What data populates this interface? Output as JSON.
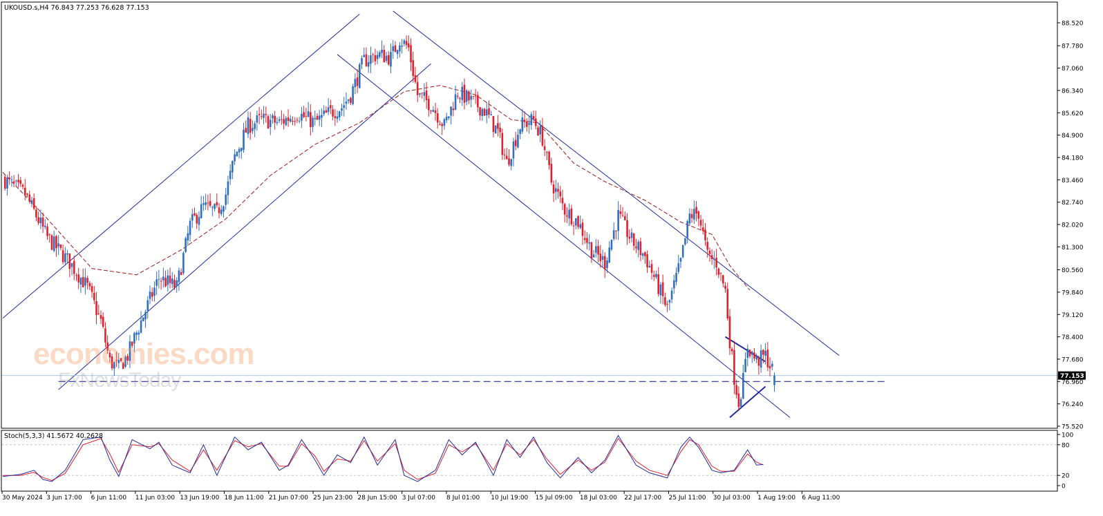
{
  "header": {
    "symbol_line": "UKOUSD.s,H4  76.843 77.253 76.628 77.153"
  },
  "price_axis": {
    "ticks": [
      "88.520",
      "87.780",
      "87.060",
      "86.340",
      "85.620",
      "84.900",
      "84.180",
      "83.460",
      "82.740",
      "82.020",
      "81.300",
      "80.560",
      "79.840",
      "79.120",
      "78.400",
      "77.680",
      "76.960",
      "76.240",
      "75.520"
    ],
    "current_label": "77.153",
    "current_value": 77.153
  },
  "time_axis": {
    "ticks": [
      "30 May 2024",
      "3 Jun 17:00",
      "6 Jun 11:00",
      "11 Jun 03:00",
      "13 Jun 19:00",
      "18 Jun 11:00",
      "21 Jun 07:00",
      "25 Jun 23:00",
      "28 Jun 15:00",
      "3 Jul 07:00",
      "8 Jul 01:00",
      "10 Jul 19:00",
      "15 Jul 09:00",
      "18 Jul 03:00",
      "22 Jul 17:00",
      "25 Jul 11:00",
      "30 Jul 03:00",
      "1 Aug 19:00",
      "6 Aug 11:00"
    ]
  },
  "stochastic": {
    "label": "Stoch(5,3,3) 41.5672 40.2628",
    "ticks": [
      "100",
      "80",
      "20",
      "0"
    ]
  },
  "watermark": {
    "main": "economies.com",
    "sub": "FxNewsToday"
  },
  "colors": {
    "bull_candle": "#2e6fc0",
    "bear_candle": "#e0202c",
    "channel": "#1f2aa0",
    "moving_average": "#a01818",
    "stoch_main": "#1f2aa0",
    "stoch_signal": "#e0202c",
    "support_line": "#1f2aa0"
  },
  "chart_data": {
    "type": "candlestick",
    "symbol": "UKOUSD.s",
    "timeframe": "H4",
    "ohlc_last": {
      "open": 76.843,
      "high": 77.253,
      "low": 76.628,
      "close": 77.153
    },
    "ylim": [
      75.52,
      88.52
    ],
    "close_path": [
      [
        0,
        83.5
      ],
      [
        10,
        83.0
      ],
      [
        20,
        81.6
      ],
      [
        30,
        80.8
      ],
      [
        38,
        80.0
      ],
      [
        44,
        78.9
      ],
      [
        48,
        77.6
      ],
      [
        52,
        77.4
      ],
      [
        56,
        77.8
      ],
      [
        62,
        78.9
      ],
      [
        70,
        80.3
      ],
      [
        78,
        80.0
      ],
      [
        84,
        82.0
      ],
      [
        90,
        82.6
      ],
      [
        96,
        82.4
      ],
      [
        100,
        83.0
      ],
      [
        104,
        84.2
      ],
      [
        110,
        85.2
      ],
      [
        116,
        85.4
      ],
      [
        124,
        85.3
      ],
      [
        132,
        85.6
      ],
      [
        140,
        85.3
      ],
      [
        146,
        85.6
      ],
      [
        152,
        85.8
      ],
      [
        156,
        86.2
      ],
      [
        162,
        87.3
      ],
      [
        168,
        87.5
      ],
      [
        174,
        87.4
      ],
      [
        178,
        88.0
      ],
      [
        182,
        87.7
      ],
      [
        186,
        86.2
      ],
      [
        192,
        85.9
      ],
      [
        198,
        85.2
      ],
      [
        204,
        86.3
      ],
      [
        210,
        86.0
      ],
      [
        216,
        85.7
      ],
      [
        222,
        85.0
      ],
      [
        226,
        84.0
      ],
      [
        232,
        85.2
      ],
      [
        238,
        85.4
      ],
      [
        242,
        84.8
      ],
      [
        246,
        83.4
      ],
      [
        252,
        82.5
      ],
      [
        258,
        82.1
      ],
      [
        264,
        81.2
      ],
      [
        270,
        80.8
      ],
      [
        276,
        82.3
      ],
      [
        282,
        81.5
      ],
      [
        288,
        81.0
      ],
      [
        294,
        80.0
      ],
      [
        298,
        79.3
      ],
      [
        304,
        80.8
      ],
      [
        308,
        82.3
      ],
      [
        312,
        82.4
      ],
      [
        316,
        81.0
      ],
      [
        320,
        80.8
      ],
      [
        324,
        79.9
      ],
      [
        326,
        78.3
      ],
      [
        328,
        77.1
      ],
      [
        330,
        76.3
      ],
      [
        332,
        77.0
      ],
      [
        334,
        78.1
      ],
      [
        338,
        77.6
      ],
      [
        342,
        77.8
      ],
      [
        346,
        77.153
      ]
    ],
    "moving_average": [
      [
        0,
        83.7
      ],
      [
        20,
        82.2
      ],
      [
        40,
        80.6
      ],
      [
        60,
        80.4
      ],
      [
        80,
        81.2
      ],
      [
        100,
        82.2
      ],
      [
        120,
        83.6
      ],
      [
        140,
        84.6
      ],
      [
        160,
        85.3
      ],
      [
        180,
        86.3
      ],
      [
        196,
        86.5
      ],
      [
        212,
        86.2
      ],
      [
        228,
        85.4
      ],
      [
        240,
        85.3
      ],
      [
        256,
        84.0
      ],
      [
        270,
        83.4
      ],
      [
        288,
        82.8
      ],
      [
        304,
        82.1
      ],
      [
        318,
        81.7
      ],
      [
        326,
        80.7
      ],
      [
        335,
        79.9
      ]
    ],
    "ascending_channel": {
      "lower": [
        [
          0,
          79.0
        ],
        [
          160,
          88.8
        ]
      ],
      "upper": [
        [
          25,
          76.7
        ],
        [
          192,
          87.2
        ]
      ]
    },
    "descending_channel": {
      "upper": [
        [
          175,
          88.9
        ],
        [
          375,
          77.8
        ]
      ],
      "lower": [
        [
          150,
          87.5
        ],
        [
          353,
          75.8
        ]
      ]
    },
    "support_level": 76.96,
    "triangle": {
      "upper": [
        [
          324,
          78.4
        ],
        [
          342,
          77.6
        ]
      ],
      "lower": [
        [
          326,
          75.8
        ],
        [
          342,
          76.8
        ]
      ]
    },
    "stochastic": {
      "ylim": [
        0,
        100
      ],
      "levels": [
        80,
        20
      ],
      "main_last": 41.5672,
      "signal_last": 40.2628,
      "main": [
        [
          0,
          18
        ],
        [
          8,
          22
        ],
        [
          14,
          30
        ],
        [
          18,
          12
        ],
        [
          22,
          8
        ],
        [
          28,
          30
        ],
        [
          36,
          90
        ],
        [
          44,
          95
        ],
        [
          48,
          50
        ],
        [
          52,
          18
        ],
        [
          58,
          90
        ],
        [
          66,
          72
        ],
        [
          70,
          85
        ],
        [
          76,
          40
        ],
        [
          84,
          25
        ],
        [
          90,
          80
        ],
        [
          96,
          20
        ],
        [
          104,
          95
        ],
        [
          110,
          70
        ],
        [
          116,
          85
        ],
        [
          124,
          30
        ],
        [
          128,
          40
        ],
        [
          134,
          90
        ],
        [
          140,
          50
        ],
        [
          144,
          20
        ],
        [
          150,
          60
        ],
        [
          156,
          45
        ],
        [
          162,
          95
        ],
        [
          168,
          40
        ],
        [
          176,
          90
        ],
        [
          180,
          20
        ],
        [
          186,
          8
        ],
        [
          194,
          30
        ],
        [
          200,
          90
        ],
        [
          206,
          60
        ],
        [
          212,
          85
        ],
        [
          220,
          20
        ],
        [
          226,
          90
        ],
        [
          232,
          55
        ],
        [
          238,
          95
        ],
        [
          244,
          45
        ],
        [
          250,
          15
        ],
        [
          258,
          55
        ],
        [
          264,
          25
        ],
        [
          270,
          50
        ],
        [
          276,
          98
        ],
        [
          284,
          40
        ],
        [
          290,
          25
        ],
        [
          298,
          15
        ],
        [
          304,
          75
        ],
        [
          308,
          95
        ],
        [
          312,
          75
        ],
        [
          318,
          30
        ],
        [
          322,
          25
        ],
        [
          328,
          30
        ],
        [
          334,
          70
        ],
        [
          338,
          40
        ],
        [
          341,
          41.6
        ]
      ],
      "signal": [
        [
          0,
          20
        ],
        [
          8,
          20
        ],
        [
          14,
          26
        ],
        [
          18,
          16
        ],
        [
          22,
          10
        ],
        [
          28,
          24
        ],
        [
          36,
          80
        ],
        [
          44,
          92
        ],
        [
          48,
          62
        ],
        [
          52,
          26
        ],
        [
          58,
          80
        ],
        [
          66,
          76
        ],
        [
          70,
          82
        ],
        [
          76,
          50
        ],
        [
          84,
          28
        ],
        [
          90,
          70
        ],
        [
          96,
          30
        ],
        [
          104,
          88
        ],
        [
          110,
          76
        ],
        [
          116,
          82
        ],
        [
          124,
          38
        ],
        [
          128,
          38
        ],
        [
          134,
          82
        ],
        [
          140,
          58
        ],
        [
          144,
          28
        ],
        [
          150,
          52
        ],
        [
          156,
          48
        ],
        [
          162,
          88
        ],
        [
          168,
          48
        ],
        [
          176,
          82
        ],
        [
          180,
          30
        ],
        [
          186,
          12
        ],
        [
          194,
          24
        ],
        [
          200,
          80
        ],
        [
          206,
          66
        ],
        [
          212,
          82
        ],
        [
          220,
          30
        ],
        [
          226,
          82
        ],
        [
          232,
          60
        ],
        [
          238,
          90
        ],
        [
          244,
          52
        ],
        [
          250,
          22
        ],
        [
          258,
          50
        ],
        [
          264,
          30
        ],
        [
          270,
          46
        ],
        [
          276,
          92
        ],
        [
          284,
          48
        ],
        [
          290,
          30
        ],
        [
          298,
          20
        ],
        [
          304,
          66
        ],
        [
          308,
          90
        ],
        [
          312,
          80
        ],
        [
          318,
          38
        ],
        [
          322,
          28
        ],
        [
          328,
          28
        ],
        [
          334,
          62
        ],
        [
          338,
          46
        ],
        [
          341,
          40.3
        ]
      ]
    }
  }
}
